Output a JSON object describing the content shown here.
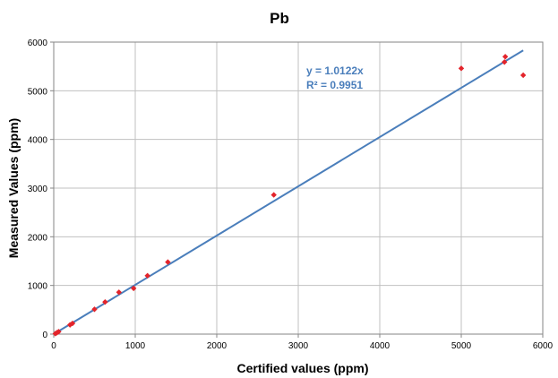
{
  "chart_data": {
    "type": "scatter",
    "title": "Pb",
    "xlabel": "Certified values (ppm)",
    "ylabel": "Measured Values (ppm)",
    "xlim": [
      0,
      6000
    ],
    "ylim": [
      0,
      6000
    ],
    "xticks": [
      "0",
      "1000",
      "2000",
      "3000",
      "4000",
      "5000",
      "6000"
    ],
    "yticks": [
      "0",
      "1000",
      "2000",
      "3000",
      "4000",
      "5000",
      "6000"
    ],
    "grid": true,
    "legend": "none",
    "series": [
      {
        "color": "#e3242b",
        "marker": "diamond",
        "points": [
          [
            20,
            10
          ],
          [
            40,
            30
          ],
          [
            60,
            50
          ],
          [
            200,
            190
          ],
          [
            230,
            220
          ],
          [
            500,
            510
          ],
          [
            630,
            660
          ],
          [
            800,
            860
          ],
          [
            980,
            940
          ],
          [
            1150,
            1200
          ],
          [
            1400,
            1480
          ],
          [
            2700,
            2860
          ],
          [
            5000,
            5460
          ],
          [
            5530,
            5590
          ],
          [
            5540,
            5700
          ],
          [
            5760,
            5320
          ]
        ]
      }
    ],
    "trendline": {
      "slope": 1.0122,
      "intercept": 0,
      "x_range": [
        0,
        5760
      ],
      "color": "#4a7ebb",
      "equation": "y = 1.0122x",
      "r_squared": "R² = 0.9951"
    }
  }
}
